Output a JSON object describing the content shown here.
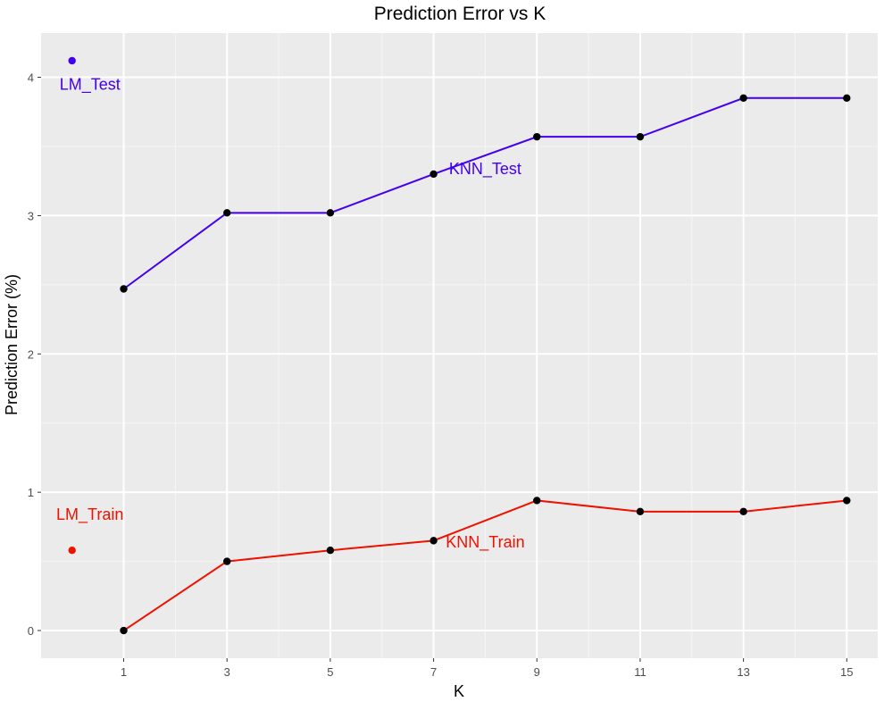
{
  "chart_data": {
    "type": "line",
    "title": "Prediction Error vs K",
    "xlabel": "K",
    "ylabel": "Prediction Error (%)",
    "x_ticks": [
      1,
      3,
      5,
      7,
      9,
      11,
      13,
      15
    ],
    "y_ticks": [
      0,
      1,
      2,
      3,
      4
    ],
    "xlim": [
      -0.6,
      15.6
    ],
    "ylim": [
      -0.2,
      4.32
    ],
    "grid": true,
    "series": [
      {
        "name": "KNN_Test",
        "color": "#4400ee",
        "x": [
          1,
          3,
          5,
          7,
          9,
          11,
          13,
          15
        ],
        "y": [
          2.47,
          3.02,
          3.02,
          3.3,
          3.57,
          3.57,
          3.85,
          3.85
        ],
        "label_x": 8.0,
        "label_y": 3.3
      },
      {
        "name": "KNN_Train",
        "color": "#ee1100",
        "x": [
          1,
          3,
          5,
          7,
          9,
          11,
          13,
          15
        ],
        "y": [
          0.0,
          0.5,
          0.58,
          0.65,
          0.94,
          0.86,
          0.86,
          0.94
        ],
        "label_x": 8.0,
        "label_y": 0.6
      }
    ],
    "points": [
      {
        "name": "LM_Test",
        "color": "#4400ee",
        "x": 0,
        "y": 4.12,
        "label_x": 0,
        "label_y": 3.91
      },
      {
        "name": "LM_Train",
        "color": "#ee1100",
        "x": 0,
        "y": 0.58,
        "label_x": 0,
        "label_y": 0.8
      }
    ],
    "colors": {
      "panel_background": "#ebebeb",
      "grid_major": "#ffffff",
      "grid_minor": "#f6f6f6",
      "marker": "#000000",
      "axis_text": "#4d4d4d"
    }
  }
}
